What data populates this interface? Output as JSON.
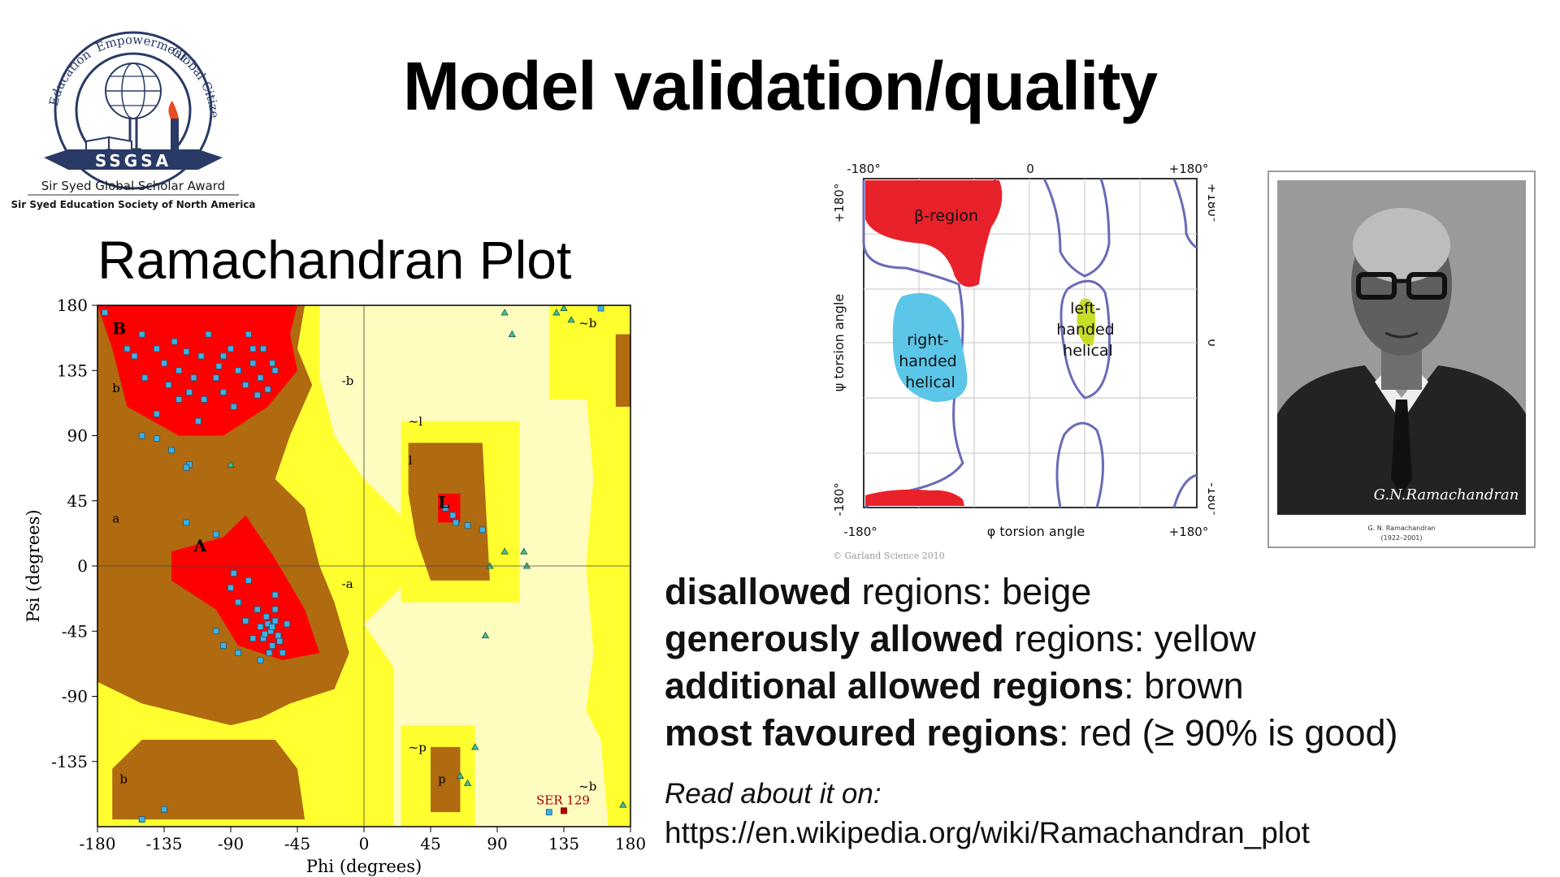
{
  "slide": {
    "title": "Model validation/quality",
    "plot_heading": "Ramachandran Plot"
  },
  "logo": {
    "icon": "ssgsa-seal-logo",
    "arc_words": [
      "Education",
      "Empowerment",
      "Global Citizenship"
    ],
    "banner": "SSGSA",
    "line1": "Sir Syed Global Scholar Award",
    "line2": "Sir Syed Education Society of North America"
  },
  "ramachandran_plot": {
    "xlabel": "Phi (degrees)",
    "ylabel": "Psi (degrees)",
    "x_ticks": [
      "-180",
      "-135",
      "-90",
      "-45",
      "0",
      "45",
      "90",
      "135",
      "180"
    ],
    "y_ticks": [
      "180",
      "135",
      "90",
      "45",
      "0",
      "-45",
      "-90",
      "-135"
    ],
    "region_labels": [
      "B",
      "b",
      "-b",
      "a",
      "A",
      "-a",
      "l",
      "L",
      "~l",
      "~b",
      "~p",
      "p",
      "b",
      "~b"
    ],
    "outlier_label": "SER 129",
    "colors": {
      "disallowed": "#fffcc0",
      "generous": "#ffff30",
      "additional": "#b06a10",
      "favoured": "#ff0000",
      "point": "#40b0e0"
    }
  },
  "chart_data": {
    "type": "scatter",
    "title": "",
    "xlabel": "Phi (degrees)",
    "ylabel": "Psi (degrees)",
    "xlim": [
      -180,
      180
    ],
    "ylim": [
      -180,
      180
    ],
    "points": [
      [
        -160,
        150
      ],
      [
        -155,
        145
      ],
      [
        -150,
        160
      ],
      [
        -148,
        130
      ],
      [
        -140,
        150
      ],
      [
        -135,
        140
      ],
      [
        -132,
        125
      ],
      [
        -128,
        155
      ],
      [
        -125,
        135
      ],
      [
        -120,
        148
      ],
      [
        -118,
        120
      ],
      [
        -115,
        130
      ],
      [
        -110,
        145
      ],
      [
        -108,
        115
      ],
      [
        -105,
        160
      ],
      [
        -100,
        130
      ],
      [
        -98,
        138
      ],
      [
        -95,
        120
      ],
      [
        -90,
        150
      ],
      [
        -88,
        110
      ],
      [
        -85,
        135
      ],
      [
        -80,
        125
      ],
      [
        -78,
        160
      ],
      [
        -75,
        140
      ],
      [
        -72,
        118
      ],
      [
        -70,
        130
      ],
      [
        -68,
        150
      ],
      [
        -65,
        122
      ],
      [
        -62,
        140
      ],
      [
        -60,
        135
      ],
      [
        -140,
        105
      ],
      [
        -125,
        115
      ],
      [
        -112,
        100
      ],
      [
        -150,
        90
      ],
      [
        -140,
        88
      ],
      [
        -118,
        70
      ],
      [
        -120,
        68
      ],
      [
        -100,
        22
      ],
      [
        -75,
        150
      ],
      [
        -95,
        145
      ],
      [
        -68,
        -50
      ],
      [
        -65,
        -40
      ],
      [
        -63,
        -45
      ],
      [
        -60,
        -38
      ],
      [
        -62,
        -55
      ],
      [
        -70,
        -42
      ],
      [
        -58,
        -48
      ],
      [
        -66,
        -35
      ],
      [
        -72,
        -30
      ],
      [
        -64,
        -60
      ],
      [
        -75,
        -50
      ],
      [
        -80,
        -38
      ],
      [
        -85,
        -25
      ],
      [
        -90,
        -15
      ],
      [
        -78,
        -10
      ],
      [
        -60,
        -20
      ],
      [
        -55,
        -60
      ],
      [
        -70,
        -65
      ],
      [
        -100,
        -45
      ],
      [
        -95,
        -55
      ],
      [
        -85,
        -60
      ],
      [
        -60,
        -30
      ],
      [
        -62,
        -42
      ],
      [
        -67,
        -47
      ],
      [
        -57,
        -52
      ],
      [
        -52,
        -40
      ],
      [
        -88,
        -5
      ],
      [
        -120,
        30
      ],
      [
        -150,
        -175
      ],
      [
        -135,
        -168
      ],
      [
        55,
        40
      ],
      [
        60,
        35
      ],
      [
        62,
        30
      ],
      [
        70,
        28
      ],
      [
        80,
        25
      ],
      [
        -175,
        175
      ],
      [
        160,
        178
      ],
      [
        125,
        -170
      ],
      [
        -130,
        80
      ]
    ],
    "glycine_points": [
      [
        -90,
        70
      ],
      [
        95,
        175
      ],
      [
        100,
        160
      ],
      [
        108,
        10
      ],
      [
        95,
        10
      ],
      [
        85,
        0
      ],
      [
        110,
        0
      ],
      [
        135,
        178
      ],
      [
        140,
        170
      ],
      [
        130,
        175
      ],
      [
        82,
        -48
      ],
      [
        75,
        -125
      ],
      [
        70,
        -150
      ],
      [
        65,
        -145
      ],
      [
        175,
        -165
      ]
    ],
    "outliers": [
      {
        "phi": 135,
        "psi": -169,
        "label": "SER 129"
      }
    ]
  },
  "schematic": {
    "top_ticks": [
      "-180°",
      "0",
      "+180°"
    ],
    "bottom_ticks": [
      "-180°",
      "+180°"
    ],
    "left_ticks": [
      "+180°",
      "-180°"
    ],
    "right_ticks": [
      "+180°",
      "0",
      "-180°"
    ],
    "xlabel": "φ torsion angle",
    "ylabel": "ψ torsion angle",
    "beta_label": "β-region",
    "right_handed_label": [
      "right-",
      "handed",
      "helical"
    ],
    "left_handed_label": [
      "left-",
      "handed",
      "helical"
    ],
    "credit": "© Garland Science 2010"
  },
  "portrait": {
    "icon": "portrait-photo",
    "signature": "G.N.Ramachandran",
    "caption_name": "G. N. Ramachandran",
    "caption_years": "(1922–2001)"
  },
  "legend": {
    "line1_bold": "disallowed",
    "line1_rest": " regions: beige",
    "line2_bold": "generously allowed",
    "line2_rest": " regions: yellow",
    "line3_bold": "additional allowed regions",
    "line3_rest": ": brown",
    "line4_bold": "most favoured regions",
    "line4_rest": ": red (≥ 90% is good)"
  },
  "reading": {
    "label": "Read about it on:",
    "url": "https://en.wikipedia.org/wiki/Ramachandran_plot"
  }
}
